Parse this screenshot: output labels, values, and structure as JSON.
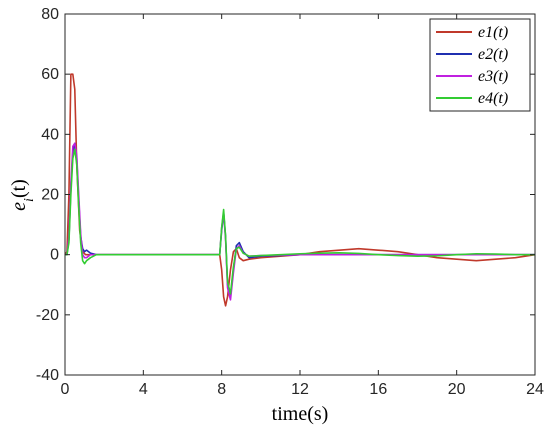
{
  "chart_data": {
    "type": "line",
    "xlabel": "time(s)",
    "ylabel": "e_i(t)",
    "xlim": [
      0,
      24
    ],
    "ylim": [
      -40,
      80
    ],
    "xticks": [
      0,
      4,
      8,
      12,
      16,
      20,
      24
    ],
    "yticks": [
      -40,
      -20,
      0,
      20,
      40,
      60,
      80
    ],
    "grid": false,
    "legend_position": "top-right",
    "series": [
      {
        "name": "e1(t)",
        "color": "#c0392b",
        "x": [
          0,
          0.1,
          0.2,
          0.3,
          0.35,
          0.4,
          0.5,
          0.6,
          0.75,
          0.9,
          1.05,
          1.2,
          1.5,
          2,
          3,
          4,
          5,
          6,
          7,
          7.9,
          8.0,
          8.1,
          8.2,
          8.3,
          8.45,
          8.6,
          8.75,
          8.9,
          9.1,
          9.4,
          10,
          11,
          12,
          13,
          14,
          15,
          16,
          17,
          18,
          19,
          20,
          21,
          22,
          23,
          24
        ],
        "y": [
          0,
          1,
          20,
          60,
          60,
          60,
          55,
          30,
          8,
          1,
          0,
          0,
          0,
          0,
          0,
          0,
          0,
          0,
          0,
          0,
          -5,
          -14,
          -17,
          -14,
          -5,
          1,
          2,
          -1,
          -2,
          -1.5,
          -1,
          -0.5,
          0,
          1,
          1.5,
          2,
          1.5,
          1,
          0,
          -1,
          -1.5,
          -2,
          -1.5,
          -1,
          0
        ]
      },
      {
        "name": "e2(t)",
        "color": "#1f2fb0",
        "x": [
          0,
          0.1,
          0.2,
          0.3,
          0.4,
          0.5,
          0.6,
          0.7,
          0.8,
          0.9,
          1.0,
          1.1,
          1.3,
          1.6,
          2,
          3,
          4,
          5,
          6,
          7,
          7.9,
          8.0,
          8.1,
          8.2,
          8.3,
          8.45,
          8.6,
          8.75,
          8.9,
          9.1,
          9.4,
          10,
          12,
          14,
          16,
          18,
          20,
          22,
          24
        ],
        "y": [
          0,
          0,
          5,
          22,
          34,
          37,
          32,
          18,
          6,
          2,
          1,
          1.5,
          0.5,
          0,
          0,
          0,
          0,
          0,
          0,
          0,
          0,
          8,
          14,
          6,
          -10,
          -14,
          -5,
          3,
          4,
          1,
          -1,
          -0.5,
          0,
          0,
          0,
          0,
          0,
          0,
          0
        ]
      },
      {
        "name": "e3(t)",
        "color": "#c020e0",
        "x": [
          0,
          0.1,
          0.2,
          0.3,
          0.4,
          0.5,
          0.6,
          0.7,
          0.8,
          0.9,
          1.0,
          1.1,
          1.3,
          1.6,
          2,
          3,
          4,
          5,
          6,
          7,
          7.9,
          8.0,
          8.1,
          8.2,
          8.3,
          8.45,
          8.6,
          8.75,
          8.9,
          9.1,
          9.4,
          10,
          12,
          14,
          16,
          18,
          20,
          22,
          24
        ],
        "y": [
          0,
          0,
          6,
          24,
          36,
          37,
          33,
          20,
          7,
          0,
          -1,
          -1,
          0,
          0,
          0,
          0,
          0,
          0,
          0,
          0,
          0,
          9,
          14,
          5,
          -11,
          -15,
          -6,
          2,
          3,
          0.5,
          -0.5,
          -0.3,
          0,
          0,
          0,
          0,
          0,
          0,
          0
        ]
      },
      {
        "name": "e4(t)",
        "color": "#33cc33",
        "x": [
          0,
          0.1,
          0.2,
          0.3,
          0.4,
          0.5,
          0.6,
          0.7,
          0.8,
          0.9,
          1.0,
          1.1,
          1.3,
          1.6,
          2,
          3,
          4,
          5,
          6,
          7,
          7.9,
          8.0,
          8.1,
          8.2,
          8.3,
          8.45,
          8.6,
          8.75,
          8.9,
          9.1,
          9.4,
          10,
          11,
          12,
          13,
          14,
          15,
          16,
          17,
          18,
          19,
          20,
          21,
          22,
          23,
          24
        ],
        "y": [
          0,
          0,
          4,
          20,
          32,
          35,
          30,
          16,
          4,
          -2,
          -3,
          -2,
          -1,
          0,
          0,
          0,
          0,
          0,
          0,
          0,
          0,
          9,
          15,
          6,
          -9,
          -13,
          -4,
          2,
          2.5,
          0.5,
          -0.5,
          -0.3,
          0,
          0.3,
          0.5,
          0.6,
          0.4,
          0,
          -0.3,
          -0.5,
          -0.4,
          0,
          0.3,
          0.2,
          0,
          0
        ]
      }
    ]
  }
}
